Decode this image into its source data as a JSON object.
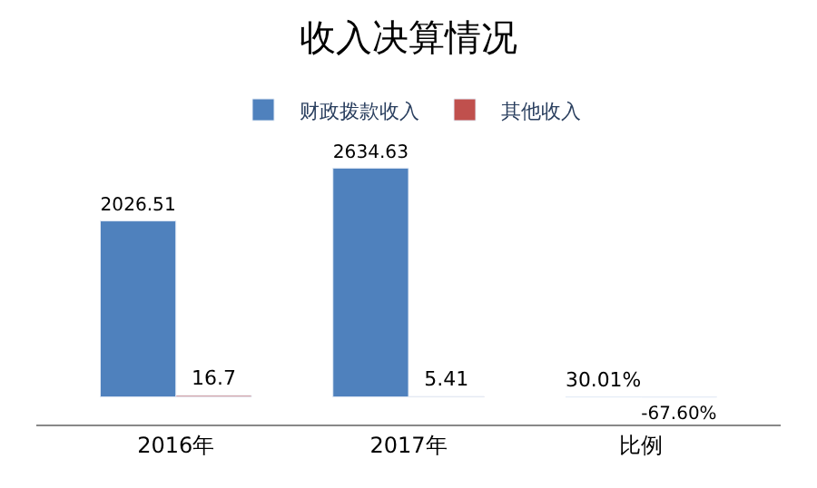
{
  "chart_data": {
    "type": "bar",
    "title": "收入决算情况",
    "categories": [
      "2016年",
      "2017年",
      "比例"
    ],
    "series": [
      {
        "name": "财政拨款收入",
        "color": "#4f81bd",
        "values": [
          2026.51,
          2634.63,
          0.3001
        ],
        "value_labels": [
          "2026.51",
          "2634.63",
          "30.01%"
        ]
      },
      {
        "name": "其他收入",
        "color": "#c0504d",
        "values": [
          16.7,
          5.41,
          -0.676
        ],
        "value_labels": [
          "16.7",
          "5.41",
          "-67.60%"
        ]
      }
    ],
    "legend": "top"
  }
}
